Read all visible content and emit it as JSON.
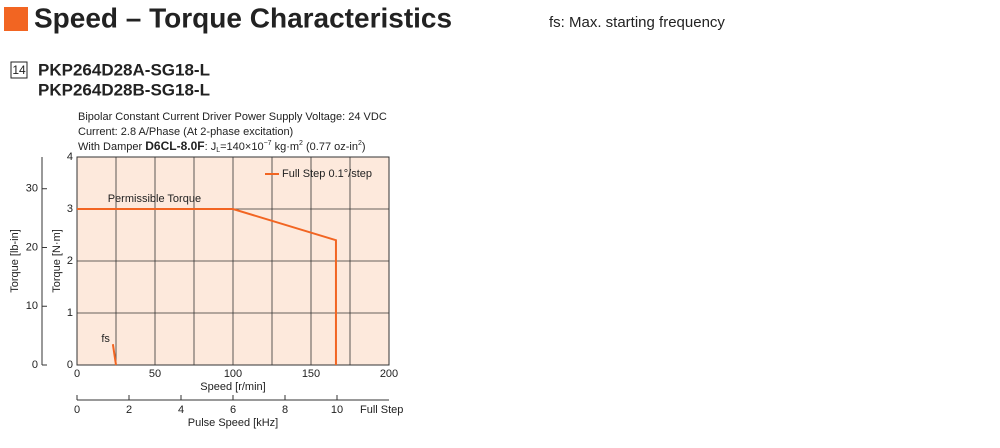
{
  "header": {
    "title": "Speed – Torque Characteristics",
    "note": "fs: Max. starting frequency"
  },
  "model": {
    "number": "14",
    "names": [
      "PKP264D28A-SG18-L",
      "PKP264D28B-SG18-L"
    ]
  },
  "chart_data": {
    "type": "line",
    "conditions": [
      "Bipolar Constant Current Driver  Power Supply Voltage: 24 VDC",
      "Current: 2.8 A/Phase (At 2-phase excitation)"
    ],
    "damper": [
      "With Damper ",
      "D6CL-8.0F",
      ": J",
      "L",
      "=140×10",
      "−7",
      " kg·m",
      "2",
      " (0.77 oz-in",
      "2",
      ")"
    ],
    "xlabel": "Speed [r/min]",
    "ylabel": "Torque [N·m]",
    "y2label": "Torque [lb-in]",
    "x2label": "Pulse Speed [kHz]",
    "x2note": "Full Step",
    "xlim": [
      0,
      200
    ],
    "xticks": [
      0,
      50,
      100,
      150,
      200
    ],
    "minor_xticks": [
      25,
      75,
      125,
      175
    ],
    "ylim": [
      0,
      4
    ],
    "yticks": [
      0,
      1,
      2,
      3,
      4
    ],
    "y2lim": [
      0,
      35.4
    ],
    "y2ticks": [
      0,
      10,
      20,
      30
    ],
    "x2lim": [
      0,
      12
    ],
    "x2ticks": [
      0,
      2,
      4,
      6,
      8,
      10
    ],
    "grid": true,
    "legend": "upper right",
    "background": "#fde9dc",
    "series": [
      {
        "name": "Full Step 0.1°/step",
        "color": "#f26522",
        "x": [
          0,
          100,
          166,
          166
        ],
        "values": [
          3,
          3,
          2.4,
          0
        ]
      }
    ],
    "annotations": [
      {
        "text": "Permissible Torque",
        "x": 12,
        "y": 3.15
      }
    ],
    "fs_marker": {
      "label": "fs",
      "color": "#f26522",
      "x": [
        23,
        25
      ],
      "values": [
        0.4,
        0
      ]
    }
  }
}
